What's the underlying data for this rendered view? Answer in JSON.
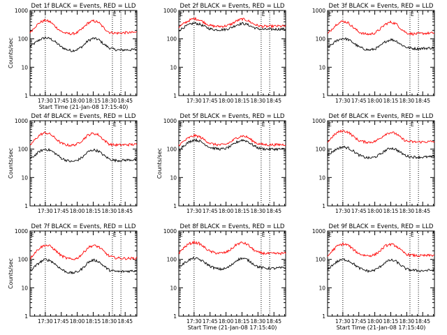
{
  "figure": {
    "background": "#ffffff",
    "axis_color": "#000000",
    "events_color": "#000000",
    "lld_color": "#ff0000",
    "marker_text": "E"
  },
  "chart_data": [
    {
      "type": "line",
      "title": "Det 1f BLACK = Events, RED = LLD",
      "xlabel": "Start Time (21-Jan-08 17:15:40)",
      "ylabel": "Counts/sec",
      "yscale": "log",
      "ylim": [
        1,
        1000
      ],
      "xlim": [
        "17:15:40",
        "18:56:00"
      ],
      "x_tick_labels": [
        "17:30",
        "17:45",
        "18:00",
        "18:15",
        "18:30",
        "18:45"
      ],
      "y_tick_labels": [
        "1",
        "10",
        "100",
        "1000"
      ],
      "event_markers": [
        "17:30",
        "18:33",
        "18:41"
      ],
      "x": [
        "17:16",
        "17:20",
        "17:25",
        "17:30",
        "17:35",
        "17:40",
        "17:45",
        "17:50",
        "17:55",
        "18:00",
        "18:05",
        "18:10",
        "18:15",
        "18:20",
        "18:25",
        "18:30",
        "18:35",
        "18:40",
        "18:45",
        "18:50",
        "18:55"
      ],
      "series": [
        {
          "name": "Events",
          "color": "#000000",
          "values": [
            55,
            70,
            95,
            110,
            100,
            75,
            52,
            42,
            38,
            42,
            55,
            85,
            105,
            95,
            65,
            48,
            42,
            40,
            41,
            41,
            42
          ]
        },
        {
          "name": "LLD",
          "color": "#ff0000",
          "values": [
            170,
            260,
            380,
            450,
            390,
            260,
            180,
            155,
            150,
            165,
            230,
            360,
            430,
            380,
            240,
            170,
            160,
            160,
            165,
            165,
            170
          ]
        }
      ]
    },
    {
      "type": "line",
      "title": "Det 2f BLACK = Events, RED = LLD",
      "xlabel": "",
      "ylabel": "",
      "yscale": "log",
      "ylim": [
        1,
        1000
      ],
      "xlim": [
        "17:15:40",
        "18:56:00"
      ],
      "x_tick_labels": [
        "17:30",
        "17:45",
        "18:00",
        "18:15",
        "18:30",
        "18:45"
      ],
      "y_tick_labels": [
        "1",
        "10",
        "100",
        "1000"
      ],
      "event_markers": [
        "17:30",
        "18:33",
        "18:41"
      ],
      "x": [
        "17:16",
        "17:20",
        "17:25",
        "17:30",
        "17:35",
        "17:40",
        "17:45",
        "17:50",
        "17:55",
        "18:00",
        "18:05",
        "18:10",
        "18:15",
        "18:20",
        "18:25",
        "18:30",
        "18:35",
        "18:40",
        "18:45",
        "18:50",
        "18:55"
      ],
      "series": [
        {
          "name": "Events",
          "color": "#000000",
          "values": [
            200,
            250,
            310,
            360,
            330,
            270,
            225,
            210,
            210,
            215,
            250,
            310,
            350,
            320,
            260,
            225,
            215,
            215,
            218,
            220,
            220
          ]
        },
        {
          "name": "LLD",
          "color": "#ff0000",
          "values": [
            260,
            340,
            440,
            520,
            470,
            370,
            295,
            275,
            275,
            285,
            330,
            430,
            500,
            450,
            350,
            290,
            275,
            275,
            280,
            280,
            280
          ]
        }
      ]
    },
    {
      "type": "line",
      "title": "Det 3f BLACK = Events, RED = LLD",
      "xlabel": "",
      "ylabel": "",
      "yscale": "log",
      "ylim": [
        1,
        1000
      ],
      "xlim": [
        "17:15:40",
        "18:56:00"
      ],
      "x_tick_labels": [
        "17:30",
        "17:45",
        "18:00",
        "18:15",
        "18:30",
        "18:45"
      ],
      "y_tick_labels": [
        "1",
        "10",
        "100",
        "1000"
      ],
      "event_markers": [
        "17:30",
        "18:33",
        "18:41"
      ],
      "x": [
        "17:16",
        "17:20",
        "17:25",
        "17:30",
        "17:35",
        "17:40",
        "17:45",
        "17:50",
        "17:55",
        "18:00",
        "18:05",
        "18:10",
        "18:15",
        "18:20",
        "18:25",
        "18:30",
        "18:35",
        "18:40",
        "18:45",
        "18:50",
        "18:55"
      ],
      "series": [
        {
          "name": "Events",
          "color": "#000000",
          "values": [
            50,
            65,
            90,
            105,
            95,
            72,
            52,
            44,
            40,
            44,
            55,
            80,
            95,
            85,
            62,
            50,
            46,
            45,
            46,
            47,
            48
          ]
        },
        {
          "name": "LLD",
          "color": "#ff0000",
          "values": [
            150,
            230,
            350,
            420,
            370,
            250,
            175,
            150,
            145,
            160,
            220,
            330,
            390,
            340,
            220,
            160,
            150,
            150,
            155,
            158,
            160
          ]
        }
      ]
    },
    {
      "type": "line",
      "title": "Det 4f BLACK = Events, RED = LLD",
      "xlabel": "",
      "ylabel": "Counts/sec",
      "yscale": "log",
      "ylim": [
        1,
        1000
      ],
      "xlim": [
        "17:15:40",
        "18:56:00"
      ],
      "x_tick_labels": [
        "17:30",
        "17:45",
        "18:00",
        "18:15",
        "18:30",
        "18:45"
      ],
      "y_tick_labels": [
        "1",
        "10",
        "100",
        "1000"
      ],
      "event_markers": [
        "17:30",
        "18:33",
        "18:41"
      ],
      "x": [
        "17:16",
        "17:20",
        "17:25",
        "17:30",
        "17:35",
        "17:40",
        "17:45",
        "17:50",
        "17:55",
        "18:00",
        "18:05",
        "18:10",
        "18:15",
        "18:20",
        "18:25",
        "18:30",
        "18:35",
        "18:40",
        "18:45",
        "18:50",
        "18:55"
      ],
      "series": [
        {
          "name": "Events",
          "color": "#000000",
          "values": [
            45,
            60,
            85,
            100,
            90,
            68,
            48,
            40,
            36,
            40,
            52,
            80,
            95,
            85,
            60,
            45,
            40,
            40,
            41,
            42,
            42
          ]
        },
        {
          "name": "LLD",
          "color": "#ff0000",
          "values": [
            140,
            210,
            320,
            380,
            330,
            230,
            160,
            140,
            135,
            150,
            210,
            310,
            360,
            320,
            210,
            150,
            140,
            140,
            142,
            145,
            145
          ]
        }
      ]
    },
    {
      "type": "line",
      "title": "Det 5f BLACK = Events, RED = LLD",
      "xlabel": "",
      "ylabel": "Counts/sec",
      "yscale": "log",
      "ylim": [
        1,
        1000
      ],
      "xlim": [
        "17:15:40",
        "18:56:00"
      ],
      "x_tick_labels": [
        "17:30",
        "17:45",
        "18:00",
        "18:15",
        "18:30",
        "18:45"
      ],
      "y_tick_labels": [
        "1",
        "10",
        "100",
        "1000"
      ],
      "event_markers": [
        "17:30",
        "18:33",
        "18:41"
      ],
      "x": [
        "17:16",
        "17:20",
        "17:25",
        "17:30",
        "17:35",
        "17:40",
        "17:45",
        "17:50",
        "17:55",
        "18:00",
        "18:05",
        "18:10",
        "18:15",
        "18:20",
        "18:25",
        "18:30",
        "18:35",
        "18:40",
        "18:45",
        "18:50",
        "18:55"
      ],
      "series": [
        {
          "name": "Events",
          "color": "#000000",
          "values": [
            100,
            130,
            175,
            215,
            195,
            150,
            115,
            105,
            100,
            105,
            130,
            175,
            210,
            190,
            140,
            110,
            102,
            100,
            100,
            100,
            100
          ]
        },
        {
          "name": "LLD",
          "color": "#ff0000",
          "values": [
            140,
            185,
            250,
            300,
            275,
            210,
            160,
            145,
            140,
            148,
            185,
            250,
            295,
            265,
            195,
            155,
            145,
            142,
            142,
            143,
            145
          ]
        }
      ]
    },
    {
      "type": "line",
      "title": "Det 6f BLACK = Events, RED = LLD",
      "xlabel": "",
      "ylabel": "",
      "yscale": "log",
      "ylim": [
        1,
        1000
      ],
      "xlim": [
        "17:15:40",
        "18:56:00"
      ],
      "x_tick_labels": [
        "17:30",
        "17:45",
        "18:00",
        "18:15",
        "18:30",
        "18:45"
      ],
      "y_tick_labels": [
        "1",
        "10",
        "100",
        "1000"
      ],
      "event_markers": [
        "17:30",
        "18:33",
        "18:41"
      ],
      "x": [
        "17:16",
        "17:20",
        "17:25",
        "17:30",
        "17:35",
        "17:40",
        "17:45",
        "17:50",
        "17:55",
        "18:00",
        "18:05",
        "18:10",
        "18:15",
        "18:20",
        "18:25",
        "18:30",
        "18:35",
        "18:40",
        "18:45",
        "18:50",
        "18:55"
      ],
      "series": [
        {
          "name": "Events",
          "color": "#000000",
          "values": [
            60,
            80,
            105,
            120,
            110,
            85,
            62,
            52,
            48,
            52,
            65,
            90,
            110,
            98,
            72,
            57,
            53,
            52,
            52,
            53,
            53
          ]
        },
        {
          "name": "LLD",
          "color": "#ff0000",
          "values": [
            180,
            270,
            390,
            440,
            400,
            280,
            200,
            180,
            175,
            185,
            240,
            340,
            390,
            350,
            240,
            190,
            180,
            178,
            180,
            182,
            185
          ]
        }
      ]
    },
    {
      "type": "line",
      "title": "Det 7f BLACK = Events, RED = LLD",
      "xlabel": "",
      "ylabel": "Counts/sec",
      "yscale": "log",
      "ylim": [
        1,
        1000
      ],
      "xlim": [
        "17:15:40",
        "18:56:00"
      ],
      "x_tick_labels": [
        "17:30",
        "17:45",
        "18:00",
        "18:15",
        "18:30",
        "18:45"
      ],
      "y_tick_labels": [
        "1",
        "10",
        "100",
        "1000"
      ],
      "event_markers": [
        "17:30",
        "18:33",
        "18:41"
      ],
      "x": [
        "17:16",
        "17:20",
        "17:25",
        "17:30",
        "17:35",
        "17:40",
        "17:45",
        "17:50",
        "17:55",
        "18:00",
        "18:05",
        "18:10",
        "18:15",
        "18:20",
        "18:25",
        "18:30",
        "18:35",
        "18:40",
        "18:45",
        "18:50",
        "18:55"
      ],
      "series": [
        {
          "name": "Events",
          "color": "#000000",
          "values": [
            40,
            55,
            80,
            100,
            90,
            65,
            45,
            36,
            33,
            36,
            48,
            78,
            95,
            85,
            58,
            42,
            38,
            37,
            38,
            39,
            40
          ]
        },
        {
          "name": "LLD",
          "color": "#ff0000",
          "values": [
            110,
            170,
            260,
            320,
            290,
            200,
            135,
            110,
            100,
            110,
            160,
            260,
            310,
            280,
            190,
            130,
            115,
            110,
            108,
            108,
            110
          ]
        }
      ]
    },
    {
      "type": "line",
      "title": "Det 8f BLACK = Events, RED = LLD",
      "xlabel": "Start Time (21-Jan-08 17:15:40)",
      "ylabel": "",
      "yscale": "log",
      "ylim": [
        1,
        1000
      ],
      "xlim": [
        "17:15:40",
        "18:56:00"
      ],
      "x_tick_labels": [
        "17:30",
        "17:45",
        "18:00",
        "18:15",
        "18:30",
        "18:45"
      ],
      "y_tick_labels": [
        "1",
        "10",
        "100",
        "1000"
      ],
      "event_markers": [
        "17:30",
        "18:33",
        "18:41"
      ],
      "x": [
        "17:16",
        "17:20",
        "17:25",
        "17:30",
        "17:35",
        "17:40",
        "17:45",
        "17:50",
        "17:55",
        "18:00",
        "18:05",
        "18:10",
        "18:15",
        "18:20",
        "18:25",
        "18:30",
        "18:35",
        "18:40",
        "18:45",
        "18:50",
        "18:55"
      ],
      "series": [
        {
          "name": "Events",
          "color": "#000000",
          "values": [
            55,
            70,
            95,
            110,
            100,
            78,
            58,
            48,
            45,
            48,
            62,
            95,
            110,
            98,
            72,
            55,
            50,
            48,
            48,
            50,
            50
          ]
        },
        {
          "name": "LLD",
          "color": "#ff0000",
          "values": [
            170,
            250,
            350,
            400,
            360,
            260,
            190,
            170,
            165,
            175,
            230,
            340,
            390,
            340,
            230,
            175,
            165,
            160,
            160,
            162,
            165
          ]
        }
      ]
    },
    {
      "type": "line",
      "title": "Det 9f BLACK = Events, RED = LLD",
      "xlabel": "Start Time (21-Jan-08 17:15:40)",
      "ylabel": "",
      "yscale": "log",
      "ylim": [
        1,
        1000
      ],
      "xlim": [
        "17:15:40",
        "18:56:00"
      ],
      "x_tick_labels": [
        "17:30",
        "17:45",
        "18:00",
        "18:15",
        "18:30",
        "18:45"
      ],
      "y_tick_labels": [
        "1",
        "10",
        "100",
        "1000"
      ],
      "event_markers": [
        "17:30",
        "18:33",
        "18:41"
      ],
      "x": [
        "17:16",
        "17:20",
        "17:25",
        "17:30",
        "17:35",
        "17:40",
        "17:45",
        "17:50",
        "17:55",
        "18:00",
        "18:05",
        "18:10",
        "18:15",
        "18:20",
        "18:25",
        "18:30",
        "18:35",
        "18:40",
        "18:45",
        "18:50",
        "18:55"
      ],
      "series": [
        {
          "name": "Events",
          "color": "#000000",
          "values": [
            45,
            62,
            85,
            100,
            92,
            70,
            50,
            42,
            38,
            42,
            55,
            80,
            95,
            85,
            60,
            45,
            42,
            40,
            40,
            41,
            42
          ]
        },
        {
          "name": "LLD",
          "color": "#ff0000",
          "values": [
            130,
            200,
            300,
            350,
            320,
            220,
            160,
            140,
            135,
            145,
            200,
            300,
            340,
            300,
            200,
            150,
            140,
            135,
            135,
            137,
            140
          ]
        }
      ]
    }
  ]
}
